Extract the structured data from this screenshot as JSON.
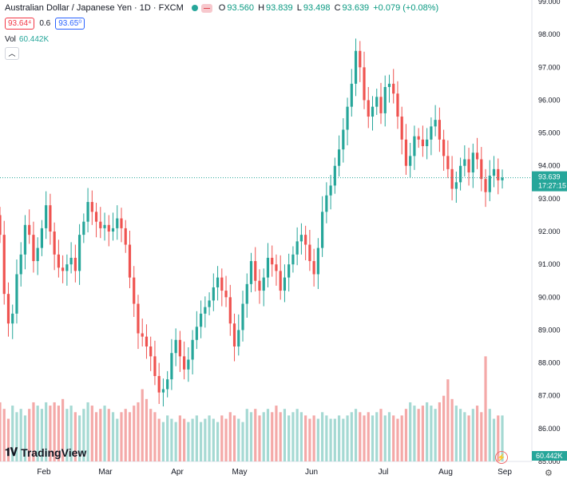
{
  "header": {
    "symbol": "Australian Dollar / Japanese Yen · 1D · FXCM",
    "o_label": "O",
    "o_val": "93.560",
    "h_label": "H",
    "h_val": "93.839",
    "l_label": "L",
    "l_val": "93.498",
    "c_label": "C",
    "c_val": "93.639",
    "change": "+0.079 (+0.08%)",
    "bid": "93.64⁴",
    "spread": "0.6",
    "ask": "93.65⁰",
    "vol_label": "Vol",
    "vol_value": "60.442K"
  },
  "logo_text": "TradingView",
  "chart_data": {
    "type": "candlestick",
    "title": "Australian Dollar / Japanese Yen · 1D · FXCM",
    "y_ticks": [
      85,
      86,
      87,
      88,
      89,
      90,
      91,
      92,
      93,
      94,
      95,
      96,
      97,
      98,
      99
    ],
    "y_tick_labels": [
      "85.000",
      "86.000",
      "87.000",
      "88.000",
      "89.000",
      "90.000",
      "91.000",
      "92.000",
      "93.000",
      "94.000",
      "95.000",
      "96.000",
      "97.000",
      "98.000",
      "99.000"
    ],
    "ylim": [
      85,
      99
    ],
    "x_labels": [
      "Feb",
      "Mar",
      "Apr",
      "May",
      "Jun",
      "Jul",
      "Aug",
      "Sep"
    ],
    "last_price": "93.639",
    "last_price_value": 93.639,
    "countdown": "17:27:15",
    "volume_last": "60.442K",
    "colors": {
      "up": "#26a69a",
      "down": "#ef5350",
      "vol_up": "#a5d9d3",
      "vol_down": "#f4a9a8"
    },
    "close_series": [
      91.9,
      90.1,
      89.2,
      89.5,
      90.7,
      91.3,
      92.2,
      91.9,
      91.1,
      91.5,
      92.1,
      92.8,
      92.0,
      91.3,
      90.9,
      90.8,
      91.0,
      91.2,
      90.8,
      91.9,
      92.3,
      92.9,
      92.6,
      92.3,
      92.1,
      92.2,
      92.0,
      92.1,
      92.4,
      92.1,
      91.6,
      90.6,
      89.8,
      88.9,
      88.8,
      88.5,
      88.2,
      87.6,
      87.1,
      87.2,
      87.5,
      88.3,
      88.7,
      88.2,
      87.8,
      88.1,
      88.7,
      89.1,
      89.5,
      89.7,
      89.9,
      90.3,
      90.6,
      90.2,
      90.0,
      89.2,
      88.5,
      89.0,
      89.8,
      90.4,
      91.1,
      90.5,
      90.2,
      90.6,
      91.2,
      91.0,
      90.8,
      90.2,
      90.6,
      91.0,
      91.3,
      91.7,
      91.9,
      91.6,
      91.1,
      90.7,
      91.5,
      92.6,
      93.1,
      93.4,
      94.0,
      94.5,
      95.1,
      95.8,
      96.5,
      97.5,
      97.0,
      96.0,
      95.5,
      95.8,
      96.1,
      95.6,
      96.4,
      96.5,
      96.2,
      95.5,
      94.8,
      94.0,
      94.3,
      94.9,
      94.8,
      94.6,
      94.8,
      95.2,
      95.4,
      94.8,
      94.3,
      93.9,
      93.3,
      93.5,
      94.0,
      94.2,
      93.8,
      94.4,
      94.2,
      93.6,
      93.2,
      93.7,
      93.9,
      93.56,
      93.64
    ],
    "volume_series": [
      86.8,
      86.6,
      86.3,
      86.7,
      86.5,
      86.6,
      86.4,
      86.6,
      86.8,
      86.7,
      86.6,
      86.8,
      86.7,
      86.8,
      86.7,
      86.9,
      86.6,
      86.7,
      86.5,
      86.4,
      86.6,
      86.8,
      86.7,
      86.5,
      86.6,
      86.7,
      86.6,
      86.5,
      86.3,
      86.5,
      86.6,
      86.5,
      86.7,
      86.8,
      87.2,
      86.9,
      86.6,
      86.5,
      86.3,
      86.2,
      86.4,
      86.3,
      86.2,
      86.4,
      86.3,
      86.2,
      86.3,
      86.4,
      86.2,
      86.3,
      86.4,
      86.3,
      86.2,
      86.4,
      86.3,
      86.5,
      86.4,
      86.3,
      86.2,
      86.6,
      86.5,
      86.6,
      86.4,
      86.5,
      86.6,
      86.5,
      86.7,
      86.5,
      86.6,
      86.4,
      86.5,
      86.6,
      86.5,
      86.4,
      86.3,
      86.4,
      86.3,
      86.5,
      86.4,
      86.3,
      86.3,
      86.4,
      86.3,
      86.4,
      86.5,
      86.6,
      86.5,
      86.4,
      86.5,
      86.4,
      86.5,
      86.6,
      86.4,
      86.5,
      86.4,
      86.3,
      86.4,
      86.6,
      86.8,
      86.7,
      86.6,
      86.7,
      86.8,
      86.7,
      86.6,
      86.8,
      87.0,
      87.5,
      86.9,
      86.7,
      86.6,
      86.5,
      86.4,
      86.6,
      86.7,
      86.5,
      88.2,
      86.6,
      86.3,
      86.4,
      86.4
    ]
  }
}
